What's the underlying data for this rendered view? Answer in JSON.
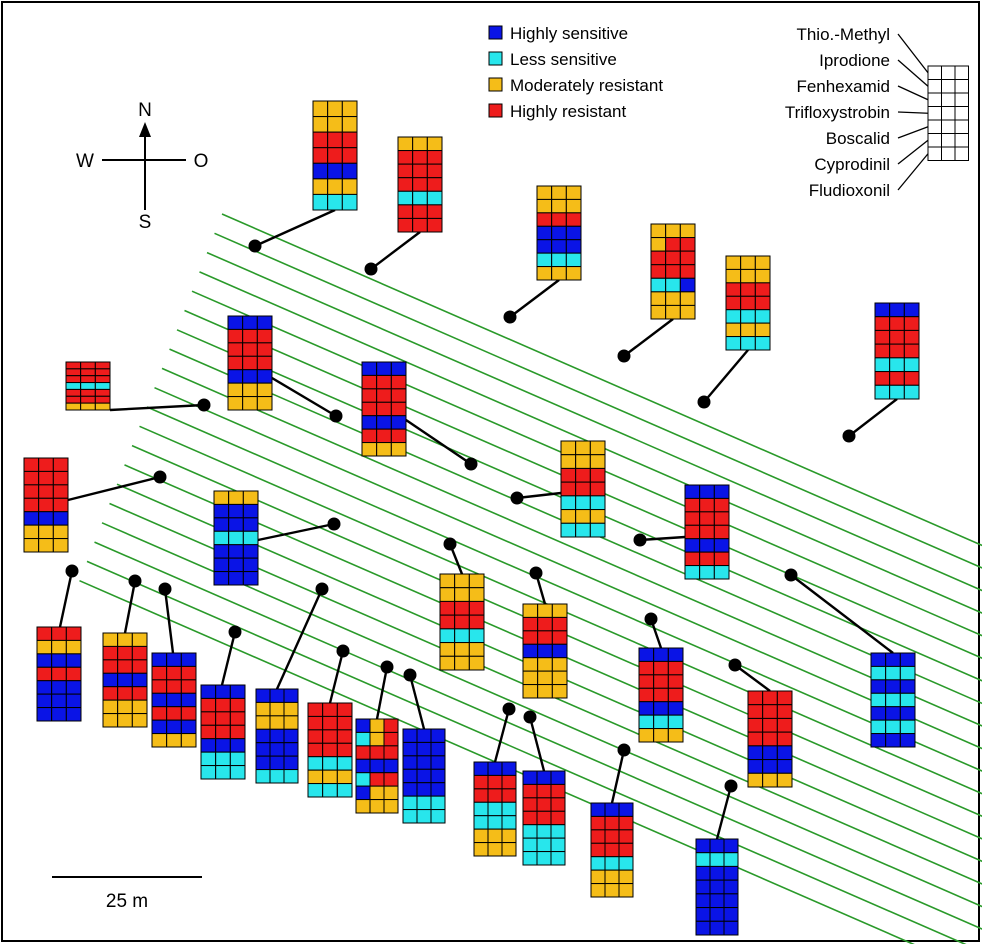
{
  "colors": {
    "highly_sensitive": "#0a14e6",
    "less_sensitive": "#28e6ec",
    "moderately_resistant": "#f5bd18",
    "highly_resistant": "#ee1c1c",
    "row_line": "#2a9a2a",
    "frame": "#000000"
  },
  "legend": {
    "items": [
      {
        "key": "highly_sensitive",
        "label": "Highly sensitive"
      },
      {
        "key": "less_sensitive",
        "label": "Less sensitive"
      },
      {
        "key": "moderately_resistant",
        "label": "Moderately resistant"
      },
      {
        "key": "highly_resistant",
        "label": "Highly resistant"
      }
    ]
  },
  "key": {
    "fungicides": [
      "Thio.-Methyl",
      "Iprodione",
      "Fenhexamid",
      "Trifloxystrobin",
      "Boscalid",
      "Cyprodinil",
      "Fludioxonil"
    ]
  },
  "compass": {
    "north": "N",
    "south": "S",
    "west": "W",
    "east": "O"
  },
  "scale_bar": {
    "label": "25 m"
  },
  "sample_grids": [
    [
      "RRR",
      "RRR",
      "RRR",
      "CCC",
      "RRR",
      "RRR",
      "YYY"
    ],
    [
      "BBB",
      "RRR",
      "RRR",
      "RRR",
      "BBB",
      "YYY",
      "YYY"
    ],
    [
      "YYY",
      "BBB",
      "BBB",
      "CCC",
      "BBB",
      "BBB",
      "BBB"
    ],
    [
      "BBB",
      "RRR",
      "RRR",
      "RRR",
      "BBB",
      "RRR",
      "YYY"
    ],
    [
      "YYY",
      "YYY",
      "RRR",
      "RRR",
      "CCC",
      "YYY",
      "CCC"
    ],
    [
      "YYY",
      "RRR",
      "RRR",
      "RRR",
      "CCC",
      "RRR",
      "RRR"
    ],
    [
      "YYY",
      "YYY",
      "RRR",
      "BBB",
      "BBB",
      "CCC",
      "YYY"
    ],
    [
      "BBB",
      "RRR",
      "RRR",
      "RRR",
      "BBB",
      "RRR",
      "CCC"
    ],
    [
      "YYY",
      "YRR",
      "RRR",
      "RRR",
      "CCB",
      "YYY",
      "YYY"
    ],
    [
      "YYY",
      "YYY",
      "RRR",
      "RRR",
      "CCC",
      "YYY",
      "CCC"
    ],
    [
      "BBB",
      "RRR",
      "RRR",
      "RRR",
      "CCC",
      "RRR",
      "CCC"
    ],
    [
      "YYY",
      "YYY",
      "RRR",
      "RRR",
      "BBB",
      "YYY",
      "CCC"
    ],
    [
      "RRR",
      "RRR",
      "RRR",
      "RRR",
      "BBB",
      "YYY",
      "YYY"
    ],
    [
      "RRR",
      "YYY",
      "BBB",
      "RRR",
      "BBB",
      "BBB",
      "BBB"
    ],
    [
      "YYY",
      "RRR",
      "RRR",
      "BBB",
      "RRR",
      "YYY",
      "YYY"
    ],
    [
      "BBB",
      "RRR",
      "RRR",
      "BBB",
      "RRR",
      "BBB",
      "YYY"
    ],
    [
      "BBB",
      "RRR",
      "RRR",
      "RRR",
      "BBB",
      "CCC",
      "CCC"
    ],
    [
      "YYY",
      "YYY",
      "RRR",
      "RRR",
      "CCC",
      "YYY",
      "YYY"
    ],
    [
      "YYY",
      "RRR",
      "RRR",
      "BBB",
      "YYY",
      "YYY",
      "YYY"
    ],
    [
      "BYR",
      "CYR",
      "RRR",
      "BBB",
      "CRR",
      "BYY",
      "YYY"
    ],
    [
      "BBB",
      "BBB",
      "BBB",
      "BBB",
      "BBB",
      "CCC",
      "CCC"
    ],
    [
      "BBB",
      "YYY",
      "YYY",
      "BBB",
      "BBB",
      "BBB",
      "CCC"
    ],
    [
      "RRR",
      "RRR",
      "RRR",
      "RRR",
      "CCC",
      "YYY",
      "CCC"
    ],
    [
      "BBB",
      "RRR",
      "RRR",
      "RRR",
      "BBB",
      "CCC",
      "YYY"
    ],
    [
      "RRR",
      "RRR",
      "RRR",
      "RRR",
      "BBB",
      "BBB",
      "YYY"
    ],
    [
      "BBB",
      "CCC",
      "BBB",
      "CCC",
      "BBB",
      "CCC",
      "BBB"
    ],
    [
      "BBB",
      "RRR",
      "RRR",
      "CCC",
      "CCC",
      "YYY",
      "YYY"
    ],
    [
      "BBB",
      "RRR",
      "RRR",
      "RRR",
      "CCC",
      "CCC",
      "CCC"
    ],
    [
      "BBB",
      "RRR",
      "RRR",
      "RRR",
      "CCC",
      "YYY",
      "YYY"
    ],
    [
      "BBB",
      "CCC",
      "BBB",
      "BBB",
      "BBB",
      "BBB",
      "BBB"
    ]
  ]
}
